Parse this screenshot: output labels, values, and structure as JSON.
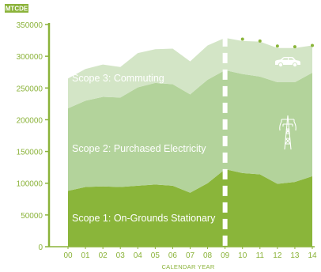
{
  "chart_data": {
    "type": "area",
    "stacked": true,
    "unit_label": "MTCDE",
    "xlabel": "CALENDAR YEAR",
    "ylabel": "",
    "ylim": [
      0,
      350000
    ],
    "yticks": [
      0,
      50000,
      100000,
      150000,
      200000,
      250000,
      300000,
      350000
    ],
    "x": [
      "00",
      "01",
      "02",
      "03",
      "04",
      "05",
      "06",
      "07",
      "08",
      "09",
      "10",
      "11",
      "12",
      "13",
      "14"
    ],
    "actual_start": "09",
    "grid": false,
    "colors": {
      "axis": "#8bb33a",
      "scope1": "#8ab53a",
      "scope2": "#b3d39b",
      "scope3": "#d3e5c6",
      "divider": "#ffffff",
      "unit_label_bg": "#8bb33a"
    },
    "series": [
      {
        "name": "Scope 1: On-Grounds Stationary",
        "values": [
          88000,
          94000,
          95000,
          94000,
          96000,
          98000,
          96000,
          85000,
          100000,
          122000,
          116000,
          114000,
          99000,
          102000,
          111000
        ]
      },
      {
        "name": "Scope 2: Purchased Electricity",
        "values": [
          130000,
          136000,
          141000,
          141000,
          155000,
          160000,
          160000,
          155000,
          163000,
          156000,
          156000,
          154000,
          160000,
          157000,
          163000
        ]
      },
      {
        "name": "Scope 3: Commuting",
        "values": [
          47000,
          50000,
          51000,
          48000,
          54000,
          53000,
          56000,
          52000,
          54000,
          51000,
          52000,
          55000,
          54000,
          54000,
          43000
        ]
      }
    ],
    "projection_markers": [
      {
        "x": "10",
        "y": 327000
      },
      {
        "x": "11",
        "y": 324000
      },
      {
        "x": "12",
        "y": 316000
      },
      {
        "x": "13",
        "y": 315000
      },
      {
        "x": "14",
        "y": 317000
      }
    ],
    "icons": [
      {
        "name": "car-icon",
        "series": "Scope 3: Commuting"
      },
      {
        "name": "power-tower-icon",
        "series": "Scope 2: Purchased Electricity"
      }
    ]
  }
}
